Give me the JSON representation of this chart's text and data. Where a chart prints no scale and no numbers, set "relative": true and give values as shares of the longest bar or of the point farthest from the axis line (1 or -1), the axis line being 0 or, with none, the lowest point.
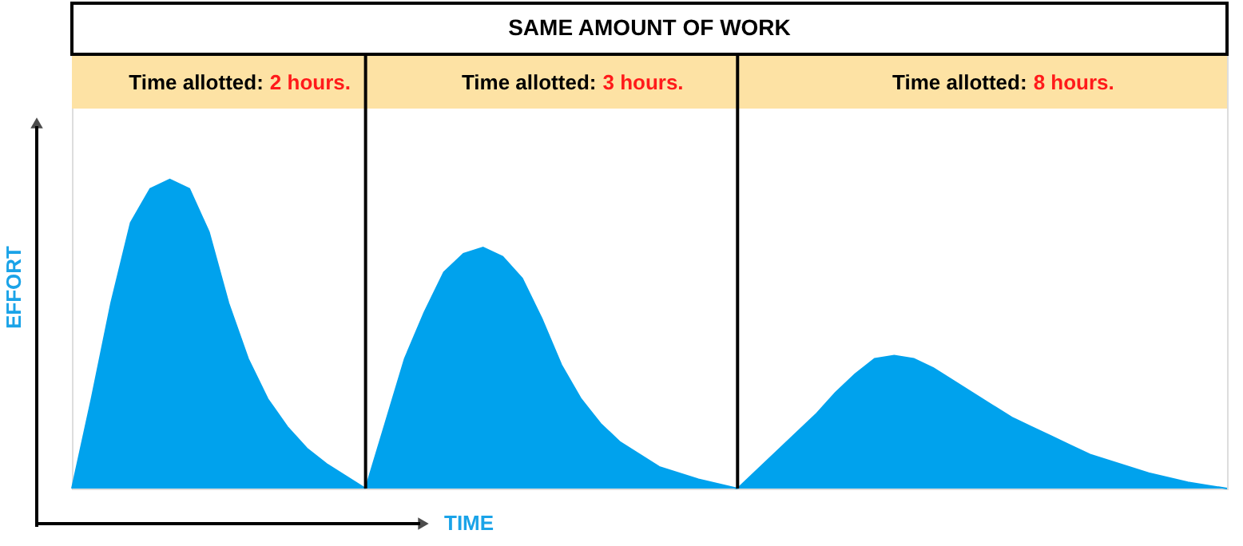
{
  "chart_data": {
    "type": "area",
    "relative": true,
    "title": "SAME AMOUNT OF WORK",
    "xlabel": "TIME",
    "ylabel": "EFFORT",
    "categories": [
      null,
      null,
      null,
      null,
      null,
      null,
      null,
      null,
      null,
      null,
      null,
      null,
      null,
      null,
      null,
      null,
      null,
      null,
      null,
      null,
      null,
      null,
      null,
      null,
      null,
      null,
      null,
      null,
      null,
      null,
      null,
      null,
      null,
      null,
      null,
      null,
      null,
      null,
      null,
      null,
      null,
      null,
      null,
      null,
      null,
      null,
      null,
      null,
      null,
      null,
      null,
      null,
      null,
      null,
      null,
      null,
      null,
      null,
      null,
      null
    ],
    "annotations": [
      "Time allotted: 2 hours.",
      "Time allotted: 3 hours.",
      "Time allotted: 8 hours."
    ],
    "series": [
      {
        "color": "#00a2ed",
        "values": [
          0,
          0.29,
          0.6,
          0.86,
          0.97,
          1.0,
          0.97,
          0.83,
          0.6,
          0.42,
          0.29,
          0.2,
          0.13,
          0.08,
          0.04,
          0,
          null,
          null,
          null,
          null,
          null,
          null,
          null,
          null,
          null,
          null,
          null,
          null,
          null,
          null,
          null,
          null,
          null,
          null,
          null,
          null,
          null,
          null,
          null,
          null,
          null,
          null,
          null,
          null,
          null,
          null,
          null,
          null,
          null,
          null,
          null,
          null,
          null,
          null,
          null,
          null,
          null,
          null,
          null,
          null
        ]
      },
      {
        "color": "#00a2ed",
        "values": [
          null,
          null,
          null,
          null,
          null,
          null,
          null,
          null,
          null,
          null,
          null,
          null,
          null,
          null,
          null,
          0,
          0.21,
          0.42,
          0.57,
          0.7,
          0.76,
          0.78,
          0.75,
          0.68,
          0.55,
          0.4,
          0.29,
          0.21,
          0.15,
          0.11,
          0.07,
          0.05,
          0.03,
          0.015,
          0,
          null,
          null,
          null,
          null,
          null,
          null,
          null,
          null,
          null,
          null,
          null,
          null,
          null,
          null,
          null,
          null,
          null,
          null,
          null,
          null,
          null,
          null,
          null,
          null,
          null
        ]
      },
      {
        "color": "#00a2ed",
        "values": [
          null,
          null,
          null,
          null,
          null,
          null,
          null,
          null,
          null,
          null,
          null,
          null,
          null,
          null,
          null,
          null,
          null,
          null,
          null,
          null,
          null,
          null,
          null,
          null,
          null,
          null,
          null,
          null,
          null,
          null,
          null,
          null,
          null,
          null,
          0,
          0.06,
          0.12,
          0.18,
          0.24,
          0.31,
          0.37,
          0.42,
          0.43,
          0.42,
          0.39,
          0.35,
          0.31,
          0.27,
          0.23,
          0.2,
          0.17,
          0.14,
          0.11,
          0.09,
          0.07,
          0.05,
          0.035,
          0.02,
          0.01,
          0
        ]
      }
    ]
  }
}
